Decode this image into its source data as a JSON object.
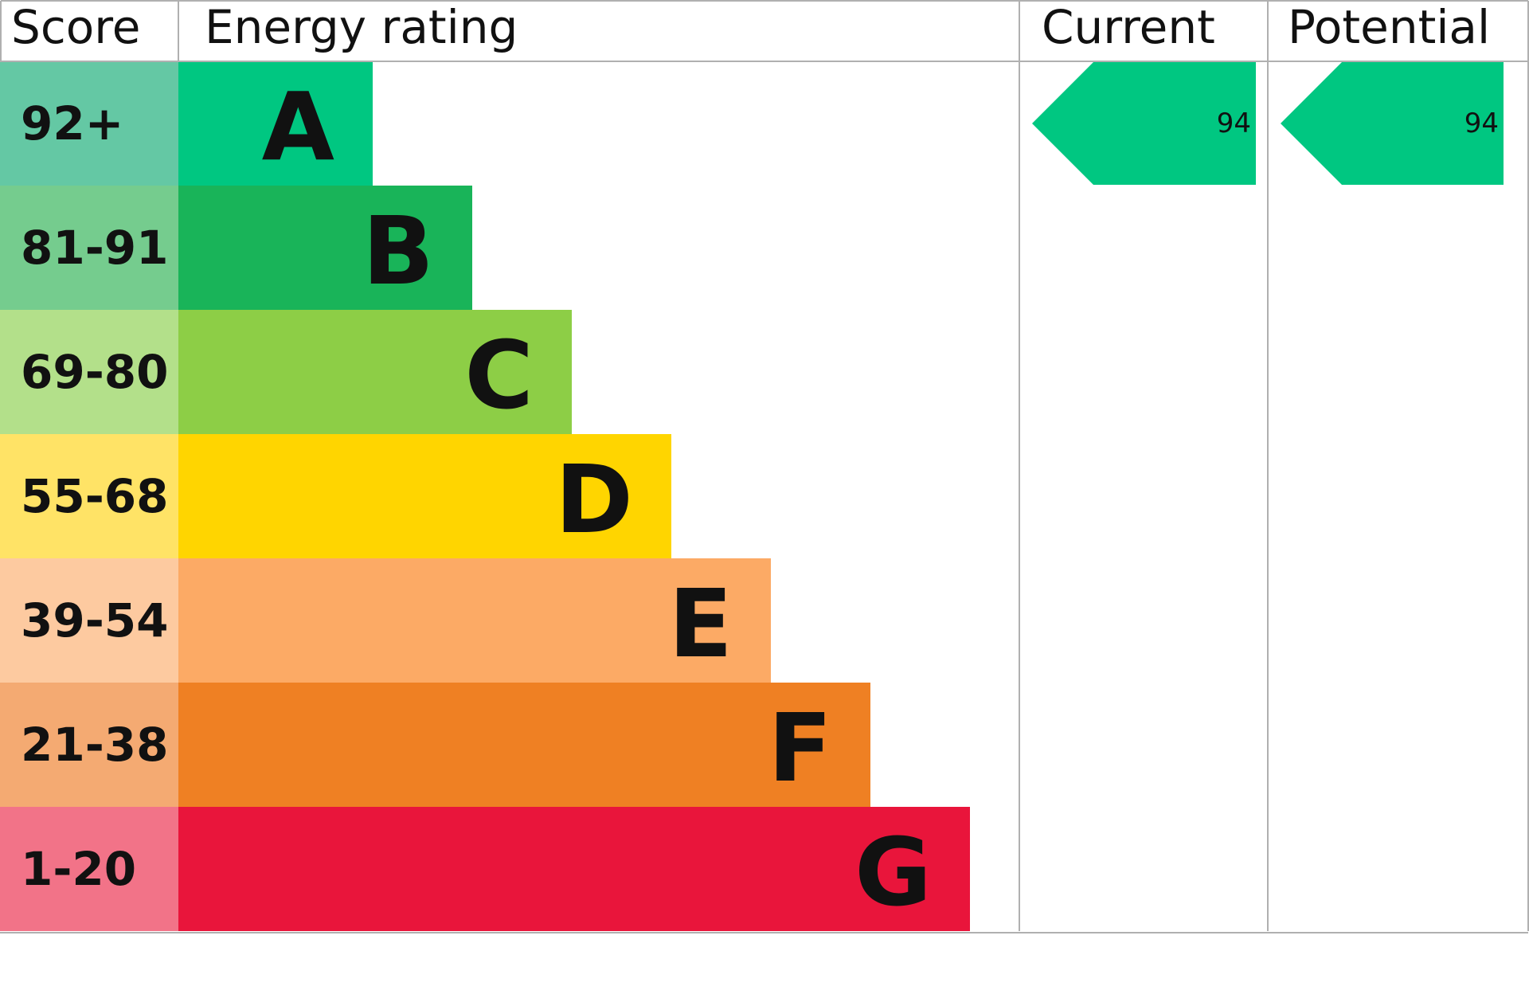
{
  "header": {
    "score": "Score",
    "energy_rating": "Energy rating",
    "current": "Current",
    "potential": "Potential"
  },
  "bands": [
    {
      "score": "92+",
      "letter": "A",
      "color": "#00c781",
      "score_color": "#64c8a4"
    },
    {
      "score": "81-91",
      "letter": "B",
      "color": "#19b459",
      "score_color": "#75cc8e"
    },
    {
      "score": "69-80",
      "letter": "C",
      "color": "#8dce46",
      "score_color": "#b3e08a"
    },
    {
      "score": "55-68",
      "letter": "D",
      "color": "#ffd500",
      "score_color": "#ffe366"
    },
    {
      "score": "39-54",
      "letter": "E",
      "color": "#fcaa65",
      "score_color": "#fdcaa0"
    },
    {
      "score": "21-38",
      "letter": "F",
      "color": "#ef8023",
      "score_color": "#f4aa72"
    },
    {
      "score": "1-20",
      "letter": "G",
      "color": "#e9153b",
      "score_color": "#f27388"
    }
  ],
  "current": {
    "value": "94",
    "band": "A"
  },
  "potential": {
    "value": "94",
    "band": "A"
  }
}
